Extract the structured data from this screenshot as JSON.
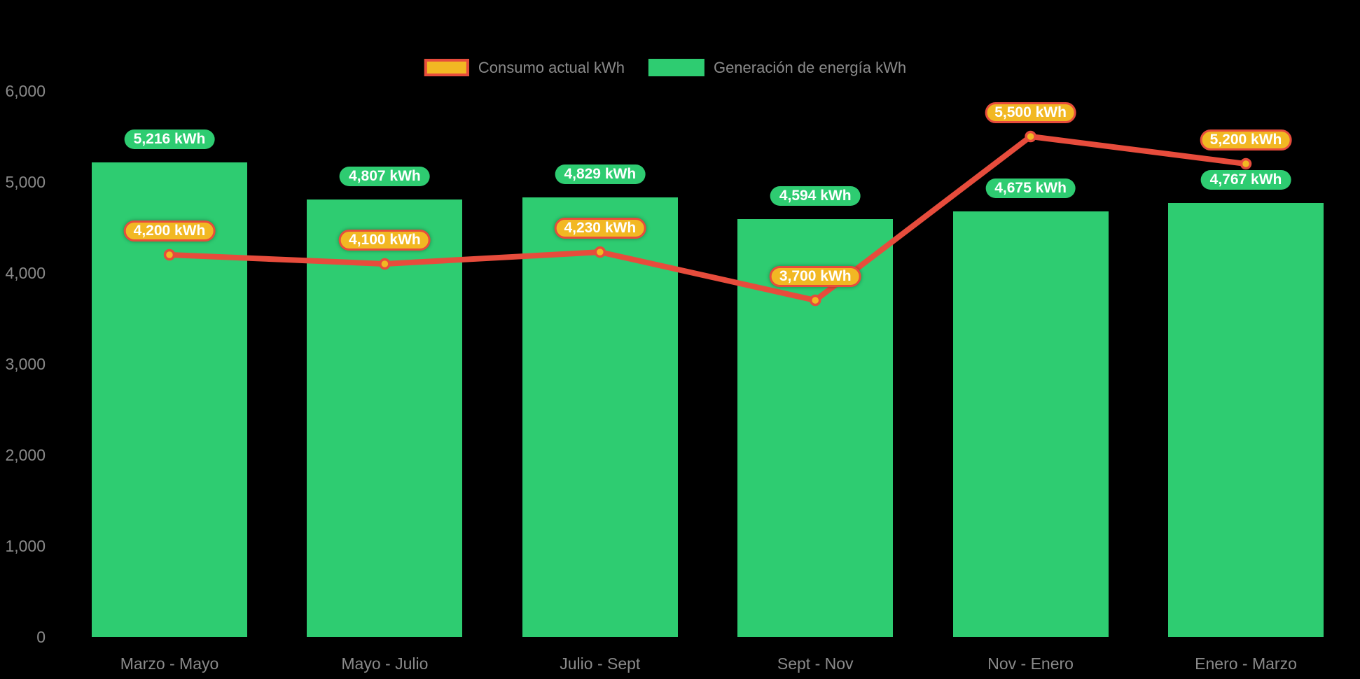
{
  "chart_data": {
    "type": "combo_bar_line",
    "title": "",
    "categories": [
      "Marzo - Mayo",
      "Mayo - Julio",
      "Julio - Sept",
      "Sept - Nov",
      "Nov - Enero",
      "Enero - Marzo"
    ],
    "series": [
      {
        "name": "Consumo actual kWh",
        "type": "line",
        "values": [
          4200,
          4100,
          4230,
          3700,
          5500,
          5200
        ],
        "labels": [
          "4,200 kWh",
          "4,100 kWh",
          "4,230 kWh",
          "3,700 kWh",
          "5,500 kWh",
          "5,200 kWh"
        ],
        "line_color": "#e74c3c",
        "point_fill": "#f2b823",
        "label_bg": "#f2b823",
        "label_border": "#e74c3c",
        "label_text_color": "#ffffff"
      },
      {
        "name": "Generación de energía kWh",
        "type": "bar",
        "values": [
          5216,
          4807,
          4829,
          4594,
          4675,
          4767
        ],
        "labels": [
          "5,216 kWh",
          "4,807 kWh",
          "4,829 kWh",
          "4,594 kWh",
          "4,675 kWh",
          "4,767 kWh"
        ],
        "bar_color": "#2ecc71",
        "label_bg": "#2ecc71",
        "label_text_color": "#ffffff"
      }
    ],
    "y_axis": {
      "ticks": [
        "6,000",
        "5,000",
        "4,000",
        "3,000",
        "2,000",
        "1,000",
        "0"
      ],
      "min": 0,
      "max": 6000
    },
    "value_suffix": " kWh",
    "grid": false,
    "legend_position": "top",
    "background_color": "#000000",
    "axis_text_color": "#8a8a8a"
  }
}
